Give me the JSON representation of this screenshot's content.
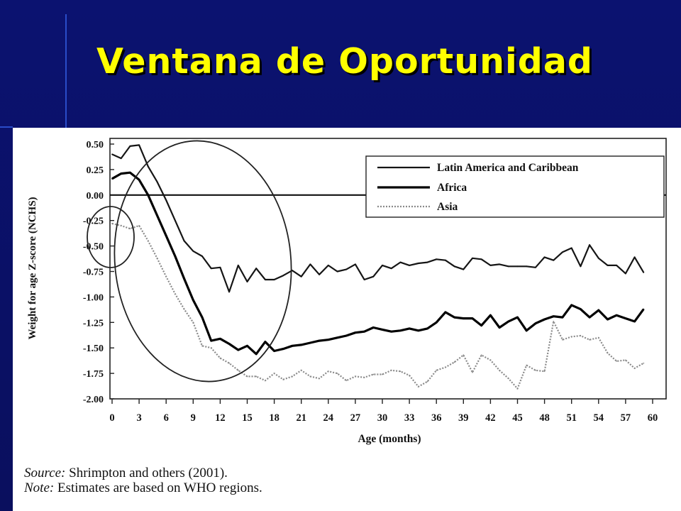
{
  "slide": {
    "title": "Ventana de Oportunidad",
    "colors": {
      "background": "#0a1066",
      "title": "#ffff00"
    }
  },
  "chart_data": {
    "type": "line",
    "xlabel": "Age (months)",
    "ylabel": "Weight for age Z-score (NCHS)",
    "xlim": [
      0,
      60
    ],
    "ylim": [
      -2.0,
      0.5
    ],
    "x_ticks": [
      "0",
      "3",
      "6",
      "9",
      "12",
      "15",
      "18",
      "21",
      "24",
      "27",
      "30",
      "33",
      "36",
      "39",
      "42",
      "45",
      "48",
      "51",
      "54",
      "57",
      "60"
    ],
    "y_ticks": [
      "0.50",
      "0.25",
      "0.00",
      "-0.25",
      "-0.50",
      "-0.75",
      "-1.00",
      "-1.25",
      "-1.50",
      "-1.75",
      "-2.00"
    ],
    "y_tick_values": [
      0.5,
      0.25,
      0.0,
      -0.25,
      -0.5,
      -0.75,
      -1.0,
      -1.25,
      -1.5,
      -1.75,
      -2.0
    ],
    "reference_line": 0.0,
    "legend_position": "top-right",
    "x": [
      0,
      1,
      2,
      3,
      4,
      5,
      6,
      7,
      8,
      9,
      10,
      11,
      12,
      13,
      14,
      15,
      16,
      17,
      18,
      19,
      20,
      21,
      22,
      23,
      24,
      25,
      26,
      27,
      28,
      29,
      30,
      31,
      32,
      33,
      34,
      35,
      36,
      37,
      38,
      39,
      40,
      41,
      42,
      43,
      44,
      45,
      46,
      47,
      48,
      49,
      50,
      51,
      52,
      53,
      54,
      55,
      56,
      57,
      58,
      59
    ],
    "series": [
      {
        "name": "Latin America and Caribbean",
        "color": "#151515",
        "width": 2.2,
        "dash": "",
        "values": [
          0.4,
          0.36,
          0.48,
          0.49,
          0.28,
          0.13,
          -0.05,
          -0.25,
          -0.45,
          -0.55,
          -0.6,
          -0.72,
          -0.71,
          -0.95,
          -0.69,
          -0.85,
          -0.72,
          -0.83,
          -0.83,
          -0.79,
          -0.74,
          -0.8,
          -0.68,
          -0.78,
          -0.69,
          -0.75,
          -0.73,
          -0.68,
          -0.83,
          -0.8,
          -0.69,
          -0.72,
          -0.66,
          -0.69,
          -0.67,
          -0.66,
          -0.63,
          -0.64,
          -0.7,
          -0.73,
          -0.62,
          -0.63,
          -0.69,
          -0.68,
          -0.7,
          -0.7,
          -0.7,
          -0.71,
          -0.61,
          -0.64,
          -0.56,
          -0.52,
          -0.7,
          -0.49,
          -0.62,
          -0.69,
          -0.69,
          -0.77,
          -0.61,
          -0.76
        ]
      },
      {
        "name": "Africa",
        "color": "#000000",
        "width": 3.2,
        "dash": "",
        "values": [
          0.16,
          0.21,
          0.22,
          0.15,
          0.0,
          -0.2,
          -0.4,
          -0.6,
          -0.82,
          -1.03,
          -1.2,
          -1.43,
          -1.41,
          -1.46,
          -1.52,
          -1.48,
          -1.56,
          -1.44,
          -1.53,
          -1.51,
          -1.48,
          -1.47,
          -1.45,
          -1.43,
          -1.42,
          -1.4,
          -1.38,
          -1.35,
          -1.34,
          -1.3,
          -1.32,
          -1.34,
          -1.33,
          -1.31,
          -1.33,
          -1.31,
          -1.25,
          -1.15,
          -1.2,
          -1.21,
          -1.21,
          -1.28,
          -1.18,
          -1.3,
          -1.24,
          -1.2,
          -1.33,
          -1.26,
          -1.22,
          -1.19,
          -1.2,
          -1.08,
          -1.12,
          -1.2,
          -1.13,
          -1.22,
          -1.18,
          -1.21,
          -1.24,
          -1.12
        ]
      },
      {
        "name": "Asia",
        "color": "#8a8a8a",
        "width": 2.2,
        "dash": "2 2",
        "values": [
          -0.28,
          -0.3,
          -0.33,
          -0.3,
          -0.45,
          -0.62,
          -0.8,
          -0.97,
          -1.12,
          -1.25,
          -1.48,
          -1.5,
          -1.6,
          -1.65,
          -1.72,
          -1.78,
          -1.78,
          -1.82,
          -1.75,
          -1.81,
          -1.78,
          -1.72,
          -1.78,
          -1.8,
          -1.73,
          -1.75,
          -1.82,
          -1.78,
          -1.79,
          -1.76,
          -1.76,
          -1.72,
          -1.73,
          -1.77,
          -1.88,
          -1.83,
          -1.72,
          -1.69,
          -1.64,
          -1.57,
          -1.74,
          -1.57,
          -1.62,
          -1.72,
          -1.8,
          -1.9,
          -1.67,
          -1.72,
          -1.73,
          -1.24,
          -1.42,
          -1.39,
          -1.38,
          -1.42,
          -1.4,
          -1.55,
          -1.63,
          -1.62,
          -1.7,
          -1.65
        ]
      }
    ],
    "source_label": "Source:",
    "source_text": " Shrimpton and others (2001).",
    "note_label": "Note:",
    "note_text": " Estimates are based on WHO regions."
  }
}
